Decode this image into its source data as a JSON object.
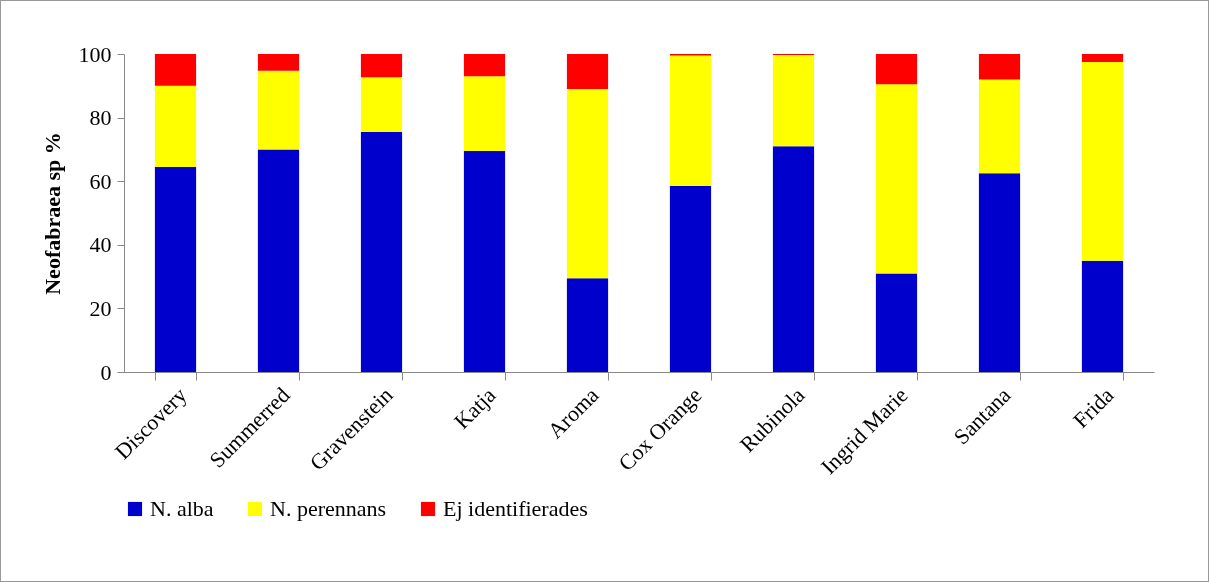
{
  "chart_data": {
    "type": "bar",
    "stacked": true,
    "ylabel": "Neofabraea sp %",
    "categories": [
      "Discovery",
      "Summerred",
      "Gravenstein",
      "Katja",
      "Aroma",
      "Cox Orange",
      "Rubinola",
      "Ingrid Marie",
      "Santana",
      "Frida"
    ],
    "series": [
      {
        "name": "N. alba",
        "color": "#0000cc",
        "values": [
          64.5,
          70,
          75.5,
          69.5,
          29.5,
          58.5,
          71,
          31,
          62.5,
          35
        ]
      },
      {
        "name": "N. perennans",
        "color": "#ffff00",
        "values": [
          25.5,
          24.7,
          17.2,
          23.5,
          59.5,
          41,
          28.7,
          59.5,
          29.5,
          62.5
        ]
      },
      {
        "name": "Ej identifierades",
        "color": "#ff0000",
        "values": [
          10,
          5.3,
          7.3,
          7,
          11,
          0.5,
          0.3,
          9.5,
          8,
          2.5
        ]
      }
    ],
    "ylim": [
      0,
      100
    ],
    "yticks": [
      0,
      20,
      40,
      60,
      80,
      100
    ],
    "grid": false,
    "legend": "bottom"
  }
}
